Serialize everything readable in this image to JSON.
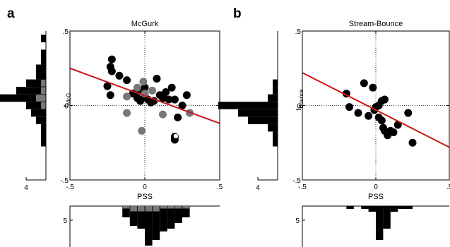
{
  "chart_data": [
    {
      "type": "scatter",
      "panel": "a",
      "title": "McGurk",
      "xlabel": "PSS",
      "ylabel_main": "t",
      "ylabel_sub": "McG",
      "xlim": [
        -0.5,
        0.5
      ],
      "ylim": [
        -0.5,
        0.5
      ],
      "xticks": [
        "-.5",
        "0",
        ".5"
      ],
      "yticks": [
        ".5",
        "0",
        "-.5"
      ],
      "colors": {
        "black": "#000000",
        "gray": "#777777",
        "fit": "#c8161d"
      },
      "fit_line": {
        "x": [
          -0.5,
          0.5
        ],
        "y": [
          0.25,
          -0.12
        ]
      },
      "series": [
        {
          "color": "black",
          "x": [
            -0.25,
            -0.23,
            -0.22,
            -0.23,
            -0.22,
            -0.17,
            -0.12,
            -0.08,
            -0.05,
            -0.05,
            -0.03,
            -0.02,
            0.0,
            0.0,
            0.02,
            0.04,
            0.06,
            0.08,
            0.1,
            0.12,
            0.12,
            0.14,
            0.16,
            0.18,
            0.2,
            0.22,
            0.25,
            0.28,
            0.2
          ],
          "y": [
            0.13,
            0.07,
            0.23,
            0.26,
            0.31,
            0.2,
            0.17,
            0.08,
            0.1,
            0.05,
            0.03,
            0.1,
            0.12,
            0.06,
            0.04,
            0.02,
            0.03,
            0.18,
            0.07,
            0.05,
            0.06,
            0.09,
            0.04,
            0.12,
            0.04,
            -0.08,
            0.0,
            0.07,
            -0.23
          ]
        },
        {
          "color": "gray",
          "x": [
            -0.12,
            -0.12,
            -0.05,
            -0.02,
            -0.01,
            0.0,
            0.05,
            0.12,
            0.3
          ],
          "y": [
            0.06,
            -0.05,
            0.12,
            -0.17,
            0.16,
            0.08,
            0.1,
            -0.06,
            -0.05
          ]
        },
        {
          "color": "open",
          "x": [
            0.2
          ],
          "y": [
            -0.21
          ]
        }
      ],
      "left_hist": {
        "xtick": "4",
        "bins_y": [
          0.45,
          0.4,
          0.35,
          0.3,
          0.25,
          0.2,
          0.15,
          0.1,
          0.05,
          0.0,
          -0.05,
          -0.1,
          -0.15,
          -0.2,
          -0.25
        ],
        "black": [
          1,
          0,
          1,
          1,
          2,
          2,
          3,
          5,
          14,
          3,
          3,
          2,
          1,
          1,
          1
        ],
        "gray": [
          0,
          0,
          0,
          0,
          0,
          0,
          1,
          1,
          2,
          1,
          0,
          0,
          0,
          0,
          0
        ]
      },
      "bottom_hist": {
        "ytick": "5",
        "bins_x": [
          -0.275,
          -0.225,
          -0.175,
          -0.125,
          -0.075,
          -0.025,
          0.025,
          0.075,
          0.125,
          0.175,
          0.225,
          0.275
        ],
        "black": [
          0,
          0,
          0,
          3,
          5,
          6,
          12,
          10,
          8,
          7,
          5,
          3
        ],
        "gray": [
          0,
          0,
          0,
          1,
          2,
          2,
          2,
          2,
          1,
          1,
          1,
          1
        ]
      }
    },
    {
      "type": "scatter",
      "panel": "b",
      "title": "Stream-Bounce",
      "xlabel": "PSS",
      "ylabel_main": "t",
      "ylabel_sub": "Bounce",
      "xlim": [
        -0.5,
        0.5
      ],
      "ylim": [
        -0.5,
        0.5
      ],
      "xticks": [
        "-.5",
        "0",
        ".5"
      ],
      "yticks": [
        ".5",
        "0",
        "-.5"
      ],
      "colors": {
        "black": "#000000",
        "fit": "#c8161d"
      },
      "fit_line": {
        "x": [
          -0.5,
          0.5
        ],
        "y": [
          0.22,
          -0.28
        ]
      },
      "series": [
        {
          "color": "black",
          "x": [
            -0.2,
            -0.18,
            -0.12,
            -0.08,
            -0.05,
            -0.02,
            -0.01,
            0.0,
            0.02,
            0.04,
            0.05,
            0.06,
            0.08,
            0.1,
            0.12,
            0.15,
            0.22,
            0.25,
            0.06,
            0.04,
            0.02
          ],
          "y": [
            0.08,
            -0.01,
            -0.05,
            0.15,
            -0.07,
            0.12,
            -0.03,
            -0.01,
            -0.08,
            -0.1,
            -0.15,
            -0.17,
            -0.2,
            -0.17,
            -0.18,
            -0.13,
            -0.05,
            -0.25,
            0.04,
            0.03,
            0.0
          ]
        }
      ],
      "left_hist": {
        "xtick": "4",
        "bins_y": [
          0.15,
          0.1,
          0.05,
          0.0,
          -0.05,
          -0.1,
          -0.15,
          -0.2,
          -0.25
        ],
        "black": [
          1,
          1,
          2,
          12,
          8,
          6,
          2,
          1,
          1
        ]
      },
      "bottom_hist": {
        "ytick": "5",
        "bins_x": [
          -0.225,
          -0.175,
          -0.125,
          -0.075,
          -0.025,
          0.025,
          0.075,
          0.125,
          0.175,
          0.225
        ],
        "black": [
          0,
          1,
          0,
          1,
          2,
          12,
          8,
          2,
          1,
          1
        ]
      }
    }
  ]
}
